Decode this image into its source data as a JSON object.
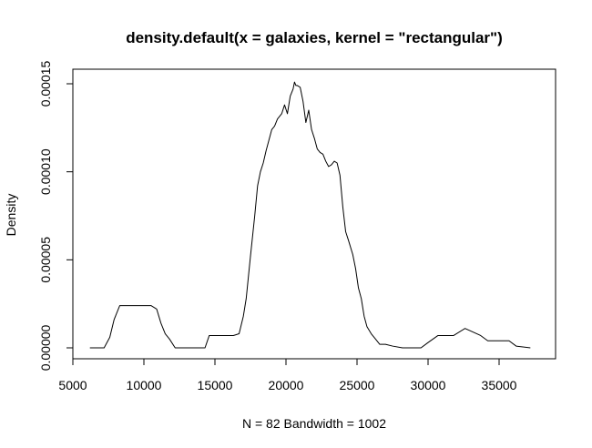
{
  "chart_data": {
    "type": "line",
    "title": "density.default(x = galaxies, kernel = \"rectangular\")",
    "xlabel": "N = 82   Bandwidth = 1002",
    "ylabel": "Density",
    "xlim": [
      5000,
      37500
    ],
    "ylim": [
      0,
      0.00015
    ],
    "grid": false,
    "x_ticks": [
      5000,
      10000,
      15000,
      20000,
      25000,
      30000,
      35000
    ],
    "x_tick_labels": [
      "5000",
      "10000",
      "15000",
      "20000",
      "25000",
      "30000",
      "35000"
    ],
    "y_ticks": [
      0,
      5e-05,
      0.0001,
      0.00015
    ],
    "y_tick_labels": [
      "0.00000",
      "0.00005",
      "0.00010",
      "0.00015"
    ],
    "series": [
      {
        "x": [
          6200,
          7200,
          7600,
          7900,
          8300,
          8700,
          9000,
          9300,
          9600,
          10000,
          10500,
          10900,
          11200,
          11500,
          11800,
          12200,
          13500,
          14300,
          14600,
          15500,
          16300,
          16700,
          17000,
          17200,
          17500,
          17800,
          18000,
          18200,
          18400,
          18600,
          18800,
          19000,
          19200,
          19400,
          19700,
          19900,
          20100,
          20300,
          20500,
          20600,
          20700,
          20800,
          21000,
          21200,
          21400,
          21600,
          21800,
          22000,
          22200,
          22400,
          22600,
          22800,
          23000,
          23200,
          23400,
          23600,
          23800,
          24000,
          24200,
          24400,
          24700,
          24900,
          25100,
          25300,
          25500,
          25700,
          26000,
          26300,
          26600,
          27000,
          27500,
          28200,
          28800,
          29500,
          30000,
          30700,
          31800,
          32600,
          33700,
          34200,
          35700,
          36200,
          37200
        ],
        "y": [
          0,
          0,
          6e-06,
          1.6e-05,
          2.4e-05,
          2.4e-05,
          2.4e-05,
          2.4e-05,
          2.4e-05,
          2.4e-05,
          2.4e-05,
          2.2e-05,
          1.4e-05,
          8e-06,
          5e-06,
          0,
          0,
          0,
          7e-06,
          7e-06,
          7e-06,
          8e-06,
          1.8e-05,
          2.8e-05,
          5.2e-05,
          7.5e-05,
          9.2e-05,
          0.0001,
          0.000105,
          0.000112,
          0.000118,
          0.000124,
          0.000126,
          0.00013,
          0.000133,
          0.000138,
          0.000133,
          0.000143,
          0.000147,
          0.000151,
          0.000149,
          0.000149,
          0.000148,
          0.00014,
          0.000128,
          0.000135,
          0.000124,
          0.000119,
          0.000113,
          0.000111,
          0.00011,
          0.000106,
          0.000103,
          0.000104,
          0.000106,
          0.000105,
          9.8e-05,
          8e-05,
          6.6e-05,
          6.1e-05,
          5.3e-05,
          4.5e-05,
          3.4e-05,
          2.8e-05,
          1.8e-05,
          1.2e-05,
          8e-06,
          5e-06,
          2e-06,
          2e-06,
          1e-06,
          0,
          0,
          0,
          3e-06,
          7e-06,
          7e-06,
          1.1e-05,
          7e-06,
          4e-06,
          4e-06,
          1e-06,
          0
        ]
      }
    ]
  }
}
